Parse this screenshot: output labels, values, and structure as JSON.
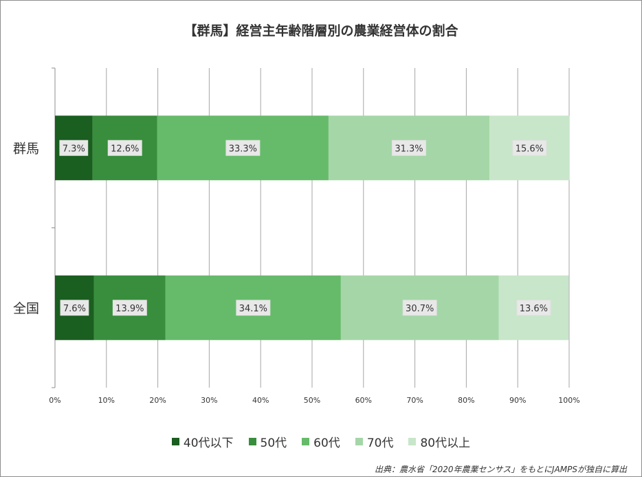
{
  "title": "【群馬】経営主年齢階層別の農業経営体の割合",
  "source": "出典：農水省「2020年農業センサス」をもとにJAMPSが独自に算出",
  "chart_data": {
    "type": "bar",
    "orientation": "horizontal",
    "stacked": "percent",
    "title": "【群馬】経営主年齢階層別の農業経営体の割合",
    "categories": [
      "群馬",
      "全国"
    ],
    "series": [
      {
        "name": "40代以下",
        "values": [
          7.3,
          7.6
        ],
        "color": "#1a5e20",
        "labels": [
          "7.3%",
          "7.6%"
        ]
      },
      {
        "name": "50代",
        "values": [
          12.6,
          13.9
        ],
        "color": "#388e3c",
        "labels": [
          "12.6%",
          "13.9%"
        ]
      },
      {
        "name": "60代",
        "values": [
          33.3,
          34.1
        ],
        "color": "#66bb6a",
        "labels": [
          "33.3%",
          "34.1%"
        ]
      },
      {
        "name": "70代",
        "values": [
          31.3,
          30.7
        ],
        "color": "#a5d6a7",
        "labels": [
          "31.3%",
          "30.7%"
        ]
      },
      {
        "name": "80代以上",
        "values": [
          15.6,
          13.6
        ],
        "color": "#c8e6c9",
        "labels": [
          "15.6%",
          "13.6%"
        ]
      }
    ],
    "xlim": [
      0,
      100
    ],
    "xticks": [
      "0%",
      "10%",
      "20%",
      "30%",
      "40%",
      "50%",
      "60%",
      "70%",
      "80%",
      "90%",
      "100%"
    ],
    "grid": true,
    "legend": "bottom"
  }
}
